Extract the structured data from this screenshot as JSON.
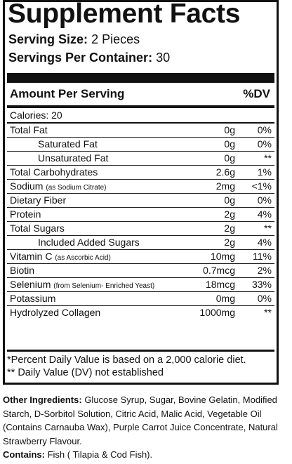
{
  "title": "Supplement Facts",
  "serving_size": {
    "label": "Serving Size:",
    "value": "2 Pieces"
  },
  "servings_per_container": {
    "label": "Servings Per Container:",
    "value": "30"
  },
  "header": {
    "amount_label": "Amount Per Serving",
    "dv_label": "%DV"
  },
  "rows": [
    {
      "name": "Calories: 20",
      "note": "",
      "amount": "",
      "dv": "",
      "indent": false
    },
    {
      "name": "Total Fat",
      "note": "",
      "amount": "0g",
      "dv": "0%",
      "indent": false
    },
    {
      "name": "Saturated Fat",
      "note": "",
      "amount": "0g",
      "dv": "0%",
      "indent": true
    },
    {
      "name": "Unsaturated Fat",
      "note": "",
      "amount": "0g",
      "dv": "**",
      "indent": true
    },
    {
      "name": "Total Carbohydrates",
      "note": "",
      "amount": "2.6g",
      "dv": "1%",
      "indent": false
    },
    {
      "name": "Sodium",
      "note": "(as Sodium Citrate)",
      "amount": "2mg",
      "dv": "<1%",
      "indent": false
    },
    {
      "name": "Dietary Fiber",
      "note": "",
      "amount": "0g",
      "dv": "0%",
      "indent": false
    },
    {
      "name": "Protein",
      "note": "",
      "amount": "2g",
      "dv": "4%",
      "indent": false
    },
    {
      "name": "Total Sugars",
      "note": "",
      "amount": "2g",
      "dv": "**",
      "indent": false
    },
    {
      "name": "Included Added Sugars",
      "note": "",
      "amount": "2g",
      "dv": "4%",
      "indent": true
    },
    {
      "name": "Vitamin C",
      "note": "(as Ascorbic Acid)",
      "amount": "10mg",
      "dv": "11%",
      "indent": false
    },
    {
      "name": "Biotin",
      "note": "",
      "amount": "0.7mcg",
      "dv": "2%",
      "indent": false
    },
    {
      "name": "Selenium",
      "note": "(from Selenium- Enriched Yeast)",
      "amount": "18mcg",
      "dv": "33%",
      "indent": false
    },
    {
      "name": "Potassium",
      "note": "",
      "amount": "0mg",
      "dv": "0%",
      "indent": false
    },
    {
      "name": "Hydrolyzed Collagen",
      "note": "",
      "amount": "1000mg",
      "dv": "**",
      "indent": false
    }
  ],
  "footnotes": [
    "*Percent Daily Value is based on a 2,000 calorie diet.",
    "** Daily Value (DV) not established"
  ],
  "other_ingredients": {
    "label": "Other Ingredients:",
    "text": "Glucose Syrup, Sugar, Bovine Gelatin, Modified Starch, D-Sorbitol Solution, Citric Acid, Malic Acid, Vegetable Oil (Contains Carnauba Wax), Purple Carrot Juice Concentrate, Natural Strawberry Flavour."
  },
  "contains": {
    "label": "Contains:",
    "text": "Fish ( Tilapia & Cod Fish)."
  }
}
